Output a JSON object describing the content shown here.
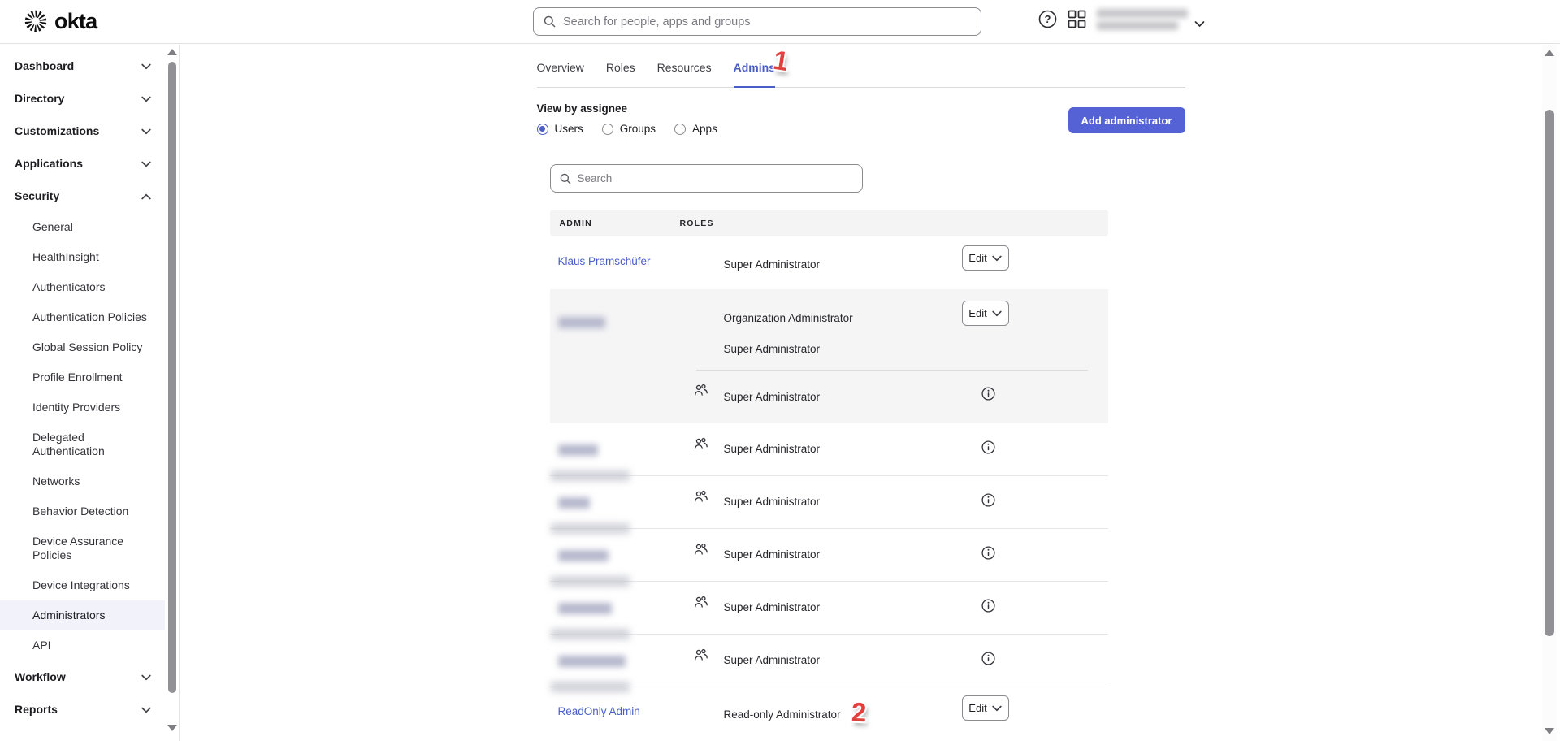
{
  "topbar": {
    "logo_text": "okta",
    "search": {
      "placeholder": "Search for people, apps and groups",
      "value": ""
    },
    "help_icon": "question-mark-circle",
    "apps_icon": "app-grid",
    "account": {
      "redacted": true,
      "lines": 2
    }
  },
  "sidebar": {
    "items": [
      {
        "label": "Dashboard",
        "type": "section",
        "chevron": "down"
      },
      {
        "label": "Directory",
        "type": "section",
        "chevron": "down"
      },
      {
        "label": "Customizations",
        "type": "section",
        "chevron": "down"
      },
      {
        "label": "Applications",
        "type": "section",
        "chevron": "down"
      },
      {
        "label": "Security",
        "type": "section",
        "chevron": "up"
      },
      {
        "label": "General",
        "type": "sub"
      },
      {
        "label": "HealthInsight",
        "type": "sub"
      },
      {
        "label": "Authenticators",
        "type": "sub"
      },
      {
        "label": "Authentication Policies",
        "type": "sub"
      },
      {
        "label": "Global Session Policy",
        "type": "sub"
      },
      {
        "label": "Profile Enrollment",
        "type": "sub"
      },
      {
        "label": "Identity Providers",
        "type": "sub"
      },
      {
        "label": "Delegated Authentication",
        "type": "sub"
      },
      {
        "label": "Networks",
        "type": "sub"
      },
      {
        "label": "Behavior Detection",
        "type": "sub"
      },
      {
        "label": "Device Assurance Policies",
        "type": "sub"
      },
      {
        "label": "Device Integrations",
        "type": "sub"
      },
      {
        "label": "Administrators",
        "type": "sub",
        "active": true
      },
      {
        "label": "API",
        "type": "sub"
      },
      {
        "label": "Workflow",
        "type": "section",
        "chevron": "down"
      },
      {
        "label": "Reports",
        "type": "section",
        "chevron": "down"
      }
    ]
  },
  "page": {
    "tabs": [
      {
        "label": "Overview",
        "active": false
      },
      {
        "label": "Roles",
        "active": false
      },
      {
        "label": "Resources",
        "active": false
      },
      {
        "label": "Admins",
        "active": true
      }
    ],
    "annotation_1": "1",
    "annotation_2": "2",
    "view_by_heading": "View by assignee",
    "assignee_options": [
      {
        "label": "Users",
        "selected": true
      },
      {
        "label": "Groups",
        "selected": false
      },
      {
        "label": "Apps",
        "selected": false
      }
    ],
    "add_admin_label": "Add administrator"
  },
  "table": {
    "search_placeholder": "Search",
    "columns": [
      "ADMIN",
      "ROLES"
    ],
    "edit_label": "Edit",
    "rows": [
      {
        "type": "simple",
        "admin": "Klaus Pramschüfer",
        "admin_is_link": true,
        "redacted": false,
        "role": "Super Administrator",
        "edit": true
      },
      {
        "type": "expanded",
        "admin": "",
        "redacted": true,
        "blur_width": 58,
        "direct_roles": [
          "Organization Administrator",
          "Super Administrator"
        ],
        "group_role": "Super Administrator",
        "info": true,
        "edit": true
      },
      {
        "type": "group",
        "admin": "",
        "redacted": true,
        "blur_width": 49,
        "role": "Super Administrator",
        "info": true,
        "band": true
      },
      {
        "type": "group",
        "admin": "",
        "redacted": true,
        "blur_width": 39,
        "role": "Super Administrator",
        "info": true,
        "band": true
      },
      {
        "type": "group",
        "admin": "",
        "redacted": true,
        "blur_width": 62,
        "role": "Super Administrator",
        "info": true,
        "band": true
      },
      {
        "type": "group",
        "admin": "",
        "redacted": true,
        "blur_width": 66,
        "role": "Super Administrator",
        "info": true,
        "band": true
      },
      {
        "type": "group",
        "admin": "",
        "redacted": true,
        "blur_width": 83,
        "role": "Super Administrator",
        "info": true,
        "band": true
      },
      {
        "type": "simple",
        "admin": "ReadOnly Admin",
        "admin_is_link": true,
        "redacted": false,
        "role": "Read-only Administrator",
        "edit": true,
        "annotation": "2",
        "last": true
      }
    ]
  },
  "colors": {
    "accent": "#4a5cc5",
    "link": "#4a5fc9",
    "primary_button": "#5562d6",
    "annotation_red": "#e2403c",
    "header_band": "#f4f4f5",
    "gray_row": "#f5f5f6",
    "sidebar_active_bg": "#f1f2fa",
    "scrollbar_thumb": "#919195"
  }
}
